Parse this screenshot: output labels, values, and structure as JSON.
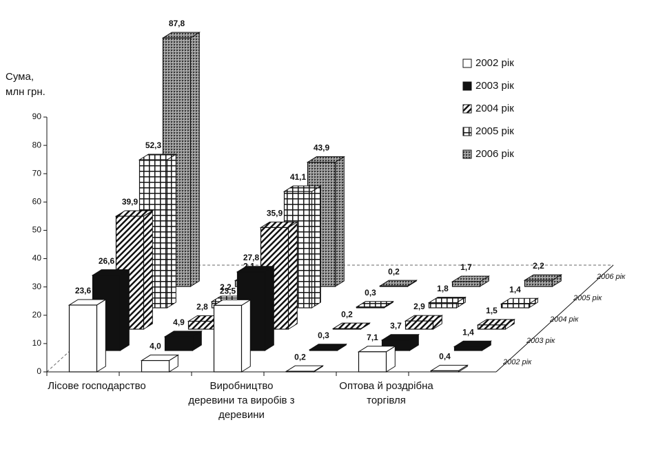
{
  "chart_data": {
    "type": "bar3d",
    "y_label": [
      "Сума,",
      "млн грн."
    ],
    "categories": [
      "Лісове господарство",
      null,
      "Виробництво деревини та виробів з деревини",
      null,
      "Оптова й роздрібна торгівля",
      null
    ],
    "series": [
      {
        "name": "2002 рік",
        "color": "#ffffff",
        "pattern": "solid",
        "values": [
          23.6,
          4.0,
          23.5,
          0.2,
          7.1,
          0.4
        ],
        "value_labels": [
          "23,6",
          "4,0",
          "23,5",
          "0,2",
          "7,1",
          "0,4"
        ]
      },
      {
        "name": "2003 рік",
        "color": "#111111",
        "pattern": "solid",
        "values": [
          26.6,
          4.9,
          27.8,
          0.3,
          3.7,
          1.4
        ],
        "value_labels": [
          "26,6",
          "4,9",
          "27,8",
          "0,3",
          "3,7",
          "1,4"
        ]
      },
      {
        "name": "2004 рік",
        "color": "#111111",
        "pattern": "hatch",
        "values": [
          39.9,
          2.8,
          35.9,
          0.2,
          2.9,
          1.5
        ],
        "value_labels": [
          "39,9",
          "2,8",
          "35,9",
          "0,2",
          "2,9",
          "1,5"
        ]
      },
      {
        "name": "2005 рік",
        "color": "#111111",
        "pattern": "grid",
        "values": [
          52.3,
          2.2,
          41.1,
          0.3,
          1.8,
          1.4
        ],
        "value_labels": [
          "52,3",
          "2,2",
          "41,1",
          "0,3",
          "1,8",
          "1,4"
        ]
      },
      {
        "name": "2006 рік",
        "color": "#555555",
        "pattern": "dots",
        "values": [
          87.8,
          2.1,
          43.9,
          0.2,
          1.7,
          2.2
        ],
        "value_labels": [
          "87,8",
          "2,1",
          "43,9",
          "0,2",
          "1,7",
          "2,2"
        ]
      }
    ],
    "ylim": [
      0,
      90
    ],
    "yticks": [
      0,
      10,
      20,
      30,
      40,
      50,
      60,
      70,
      80,
      90
    ],
    "legend": "upper right"
  }
}
